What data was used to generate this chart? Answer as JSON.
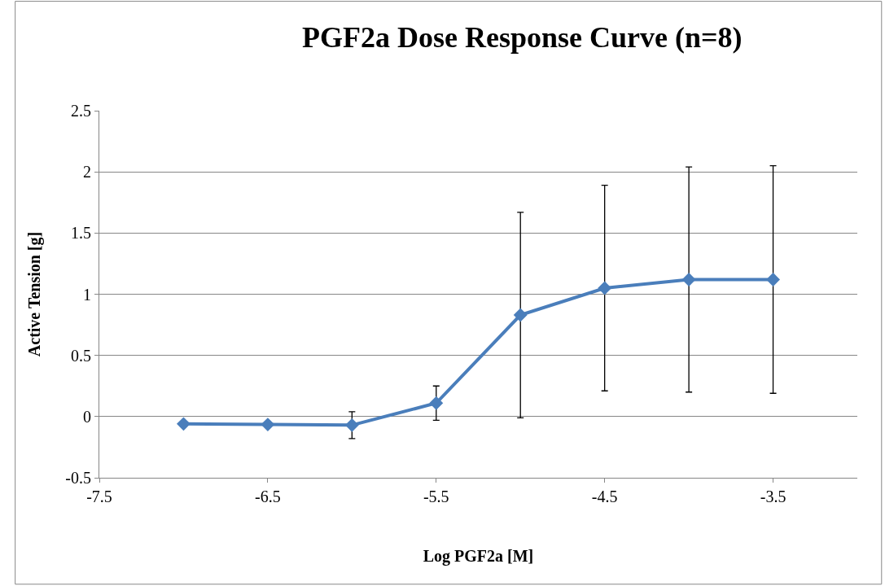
{
  "chart_data": {
    "type": "line",
    "title": "PGF2a Dose Response Curve (n=8)",
    "xlabel": "Log PGF2a [M]",
    "ylabel": "Active Tension [g]",
    "x": [
      -7,
      -6.5,
      -6,
      -5.5,
      -5,
      -4.5,
      -4,
      -3.5
    ],
    "series": [
      {
        "color": "#4a7ebb",
        "values": [
          -0.06,
          -0.065,
          -0.07,
          0.11,
          0.83,
          1.05,
          1.12,
          1.12
        ],
        "errors": [
          0.01,
          0.01,
          0.11,
          0.14,
          0.84,
          0.84,
          0.92,
          0.93
        ]
      }
    ],
    "xlim": [
      -7.5,
      -3
    ],
    "xticks": [
      -7.5,
      -6.5,
      -5.5,
      -4.5,
      -3.5
    ],
    "ylim": [
      -0.5,
      2.5
    ],
    "yticks": [
      -0.5,
      0,
      0.5,
      1,
      1.5,
      2,
      2.5
    ],
    "grid": "y",
    "marker": "diamond",
    "line_style": "solid"
  }
}
